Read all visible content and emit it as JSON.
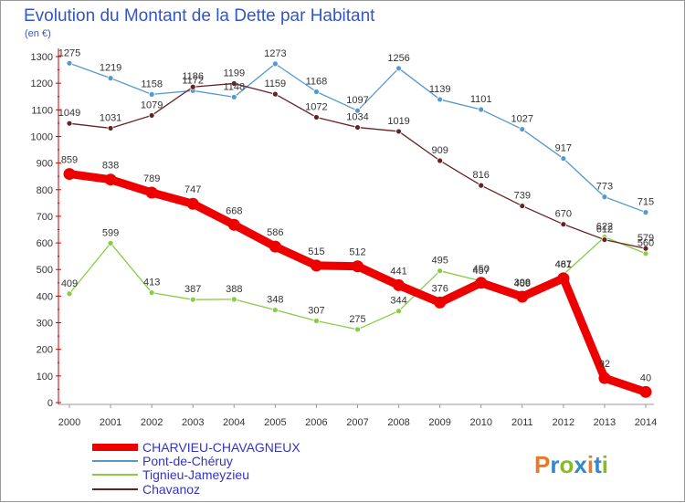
{
  "chart_data": {
    "type": "line",
    "title": "Evolution du Montant de la Dette par Habitant",
    "subtitle": "(en €)",
    "x": [
      "2000",
      "2001",
      "2002",
      "2003",
      "2004",
      "2005",
      "2006",
      "2007",
      "2008",
      "2009",
      "2010",
      "2011",
      "2012",
      "2013",
      "2014"
    ],
    "ylim": [
      0,
      1300
    ],
    "yticks": [
      0,
      100,
      200,
      300,
      400,
      500,
      600,
      700,
      800,
      900,
      1000,
      1100,
      1200,
      1300
    ],
    "grid": false,
    "legend_position": "bottom-left",
    "series": [
      {
        "name": "CHARVIEU-CHAVAGNEUX",
        "color": "#ee0000",
        "values": [
          859,
          838,
          789,
          747,
          668,
          586,
          515,
          512,
          441,
          376,
          450,
          398,
          467,
          92,
          40
        ]
      },
      {
        "name": "Pont-de-Chéruy",
        "color": "#5599cc",
        "values": [
          1275,
          1219,
          1158,
          1172,
          1148,
          1273,
          1168,
          1097,
          1256,
          1139,
          1101,
          1027,
          917,
          773,
          715
        ]
      },
      {
        "name": "Tignieu-Jameyzieu",
        "color": "#88cc44",
        "values": [
          409,
          599,
          413,
          387,
          388,
          348,
          307,
          275,
          344,
          495,
          457,
          409,
          481,
          622,
          560
        ]
      },
      {
        "name": "Chavanoz",
        "color": "#662222",
        "values": [
          1049,
          1031,
          1079,
          1186,
          1199,
          1159,
          1072,
          1034,
          1019,
          909,
          816,
          739,
          670,
          612,
          579
        ]
      }
    ]
  },
  "branding": {
    "logo_text": "Proxiti",
    "logo_colors": [
      "#ee7722",
      "#3388cc",
      "#88bb22",
      "#3388cc",
      "#ee7722",
      "#3388cc",
      "#88bb22"
    ]
  }
}
